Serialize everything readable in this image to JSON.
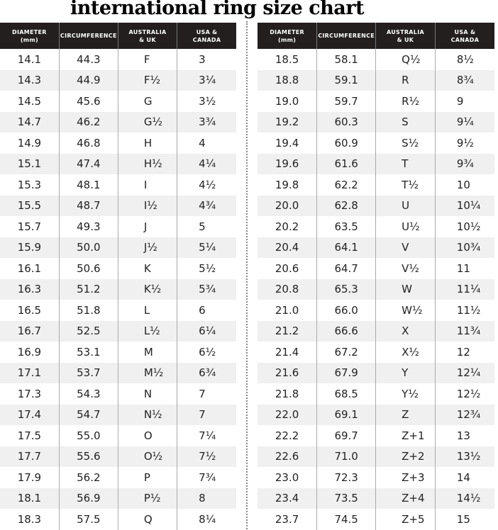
{
  "title": "international ring size chart",
  "headers": [
    "DIAMETER (mm)",
    "CIRCUMFERENCE",
    "AUSTRALIA & UK",
    "USA & CANADA"
  ],
  "tables": [
    {
      "rows": [
        [
          "14.1",
          "44.3",
          "F",
          "3"
        ],
        [
          "14.3",
          "44.9",
          "F½",
          "3¼"
        ],
        [
          "14.5",
          "45.6",
          "G",
          "3½"
        ],
        [
          "14.7",
          "46.2",
          "G½",
          "3¾"
        ],
        [
          "14.9",
          "46.8",
          "H",
          "4"
        ],
        [
          "15.1",
          "47.4",
          "H½",
          "4¼"
        ],
        [
          "15.3",
          "48.1",
          "I",
          "4½"
        ],
        [
          "15.5",
          "48.7",
          "I½",
          "4¾"
        ],
        [
          "15.7",
          "49.3",
          "J",
          "5"
        ],
        [
          "15.9",
          "50.0",
          "J½",
          "5¼"
        ],
        [
          "16.1",
          "50.6",
          "K",
          "5½"
        ],
        [
          "16.3",
          "51.2",
          "K½",
          "5¾"
        ],
        [
          "16.5",
          "51.8",
          "L",
          "6"
        ],
        [
          "16.7",
          "52.5",
          "L½",
          "6¼"
        ],
        [
          "16.9",
          "53.1",
          "M",
          "6½"
        ],
        [
          "17.1",
          "53.7",
          "M½",
          "6¾"
        ],
        [
          "17.3",
          "54.3",
          "N",
          "7"
        ],
        [
          "17.4",
          "54.7",
          "N½",
          "7"
        ],
        [
          "17.5",
          "55.0",
          "O",
          "7¼"
        ],
        [
          "17.7",
          "55.6",
          "O½",
          "7½"
        ],
        [
          "17.9",
          "56.2",
          "P",
          "7¾"
        ],
        [
          "18.1",
          "56.9",
          "P½",
          "8"
        ],
        [
          "18.3",
          "57.5",
          "Q",
          "8¼"
        ]
      ]
    },
    {
      "rows": [
        [
          "18.5",
          "58.1",
          "Q½",
          "8½"
        ],
        [
          "18.8",
          "59.1",
          "R",
          "8¾"
        ],
        [
          "19.0",
          "59.7",
          "R½",
          "9"
        ],
        [
          "19.2",
          "60.3",
          "S",
          "9¼"
        ],
        [
          "19.4",
          "60.9",
          "S½",
          "9½"
        ],
        [
          "19.6",
          "61.6",
          "T",
          "9¾"
        ],
        [
          "19.8",
          "62.2",
          "T½",
          "10"
        ],
        [
          "20.0",
          "62.8",
          "U",
          "10¼"
        ],
        [
          "20.2",
          "63.5",
          "U½",
          "10½"
        ],
        [
          "20.4",
          "64.1",
          "V",
          "10¾"
        ],
        [
          "20.6",
          "64.7",
          "V½",
          "11"
        ],
        [
          "20.8",
          "65.3",
          "W",
          "11¼"
        ],
        [
          "21.0",
          "66.0",
          "W½",
          "11½"
        ],
        [
          "21.2",
          "66.6",
          "X",
          "11¾"
        ],
        [
          "21.4",
          "67.2",
          "X½",
          "12"
        ],
        [
          "21.6",
          "67.9",
          "Y",
          "12¼"
        ],
        [
          "21.8",
          "68.5",
          "Y½",
          "12½"
        ],
        [
          "22.0",
          "69.1",
          "Z",
          "12¾"
        ],
        [
          "22.2",
          "69.7",
          "Z+1",
          "13"
        ],
        [
          "22.6",
          "71.0",
          "Z+2",
          "13½"
        ],
        [
          "23.0",
          "72.3",
          "Z+3",
          "14"
        ],
        [
          "23.4",
          "73.5",
          "Z+4",
          "14½"
        ],
        [
          "23.7",
          "74.5",
          "Z+5",
          "15"
        ]
      ]
    }
  ]
}
